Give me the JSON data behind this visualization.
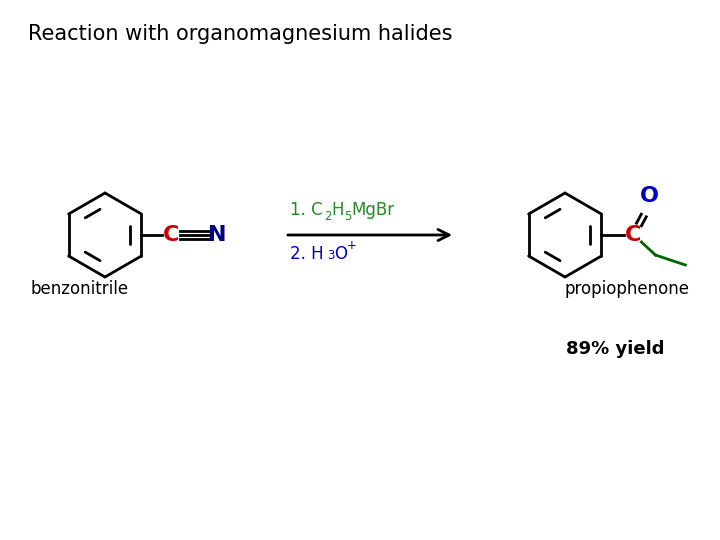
{
  "title": "Reaction with organomagnesium halides",
  "title_fontsize": 15,
  "title_color": "#000000",
  "title_bold": false,
  "reagent_color": "#228B22",
  "reagent2_color": "#0000cc",
  "label_left": "benzonitrile",
  "label_right": "propiophenone",
  "yield_text": "89% yield",
  "background_color": "#ffffff",
  "cn_c_color": "#cc0000",
  "cn_n_color": "#000080",
  "product_c_color": "#cc0000",
  "product_o_color": "#0000cc",
  "product_ethyl_color": "#006400",
  "arrow_color": "#000000",
  "bond_color": "#000000"
}
